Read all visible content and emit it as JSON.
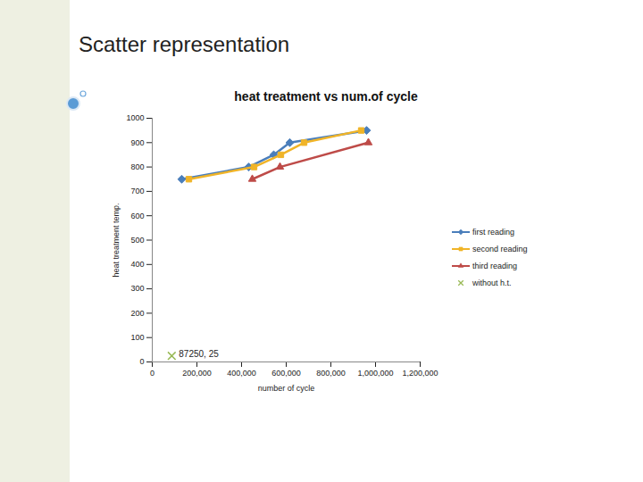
{
  "slide_title": "Scatter representation",
  "chart_data": {
    "type": "line",
    "title": "heat treatment vs num.of cycle",
    "x_label": "number of cycle",
    "y_label": "heat treatment temp.",
    "xlim": [
      0,
      1200000
    ],
    "xticks": [
      0,
      {
        "value": 200000,
        "label": "200,000"
      },
      {
        "value": 400000,
        "label": "400,000"
      },
      {
        "value": 600000,
        "label": "600,000"
      },
      {
        "value": 800000,
        "label": "800,000"
      },
      {
        "value": 1000000,
        "label": "1,000,000"
      },
      {
        "value": 1200000,
        "label": "1,200,000"
      }
    ],
    "ylim": [
      0,
      1000
    ],
    "yticks": [
      0,
      100,
      200,
      300,
      400,
      500,
      600,
      700,
      800,
      900,
      1000
    ],
    "grid": false,
    "legend": "right",
    "series": [
      {
        "name": "first reading",
        "color": "#4a7ebb",
        "marker": "diamond",
        "line_style": "solid",
        "x": [
          132000,
          432000,
          544000,
          616000,
          960000
        ],
        "values": [
          750,
          800,
          850,
          900,
          950
        ]
      },
      {
        "name": "second reading",
        "color": "#f0b428",
        "marker": "square",
        "line_style": "solid",
        "x": [
          164000,
          456000,
          576000,
          680000,
          936000
        ],
        "values": [
          750,
          800,
          850,
          900,
          950
        ]
      },
      {
        "name": "third reading",
        "color": "#be4b48",
        "marker": "triangle",
        "line_style": "solid",
        "x": [
          448000,
          572000,
          968000
        ],
        "values": [
          750,
          800,
          900
        ]
      },
      {
        "name": "without h.t.",
        "color": "#98b954",
        "marker": "x",
        "line_style": "none",
        "x": [
          87250
        ],
        "values": [
          25
        ],
        "data_labels": true,
        "value_labels": [
          "87250, 25"
        ]
      }
    ]
  }
}
